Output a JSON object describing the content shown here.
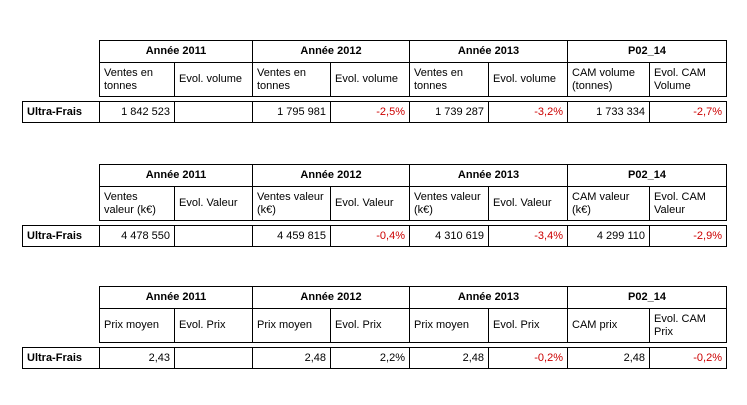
{
  "row_label": "Ultra-Frais",
  "tables": [
    {
      "years": [
        "Année 2011",
        "Année 2012",
        "Année 2013",
        "P02_14"
      ],
      "subheaders": [
        "Ventes en tonnes",
        "Evol. volume",
        "Ventes en tonnes",
        "Evol. volume",
        "Ventes en tonnes",
        "Evol. volume",
        "CAM volume (tonnes)",
        "Evol. CAM Volume"
      ],
      "values": [
        "1 842 523",
        "",
        "1 795 981",
        "-2,5%",
        "1 739 287",
        "-3,2%",
        "1 733 334",
        "-2,7%"
      ]
    },
    {
      "years": [
        "Année 2011",
        "Année 2012",
        "Année 2013",
        "P02_14"
      ],
      "subheaders": [
        "Ventes valeur (k€)",
        "Evol. Valeur",
        "Ventes valeur (k€)",
        "Evol. Valeur",
        "Ventes valeur (k€)",
        "Evol. Valeur",
        "CAM valeur (k€)",
        "Evol. CAM Valeur"
      ],
      "values": [
        "4 478 550",
        "",
        "4 459 815",
        "-0,4%",
        "4 310 619",
        "-3,4%",
        "4 299 110",
        "-2,9%"
      ]
    },
    {
      "years": [
        "Année 2011",
        "Année 2012",
        "Année 2013",
        "P02_14"
      ],
      "subheaders": [
        "Prix moyen",
        "Evol. Prix",
        "Prix moyen",
        "Evol. Prix",
        "Prix moyen",
        "Evol. Prix",
        "CAM prix",
        "Evol. CAM Prix"
      ],
      "values": [
        "2,43",
        "",
        "2,48",
        "2,2%",
        "2,48",
        "-0,2%",
        "2,48",
        "-0,2%"
      ]
    }
  ]
}
